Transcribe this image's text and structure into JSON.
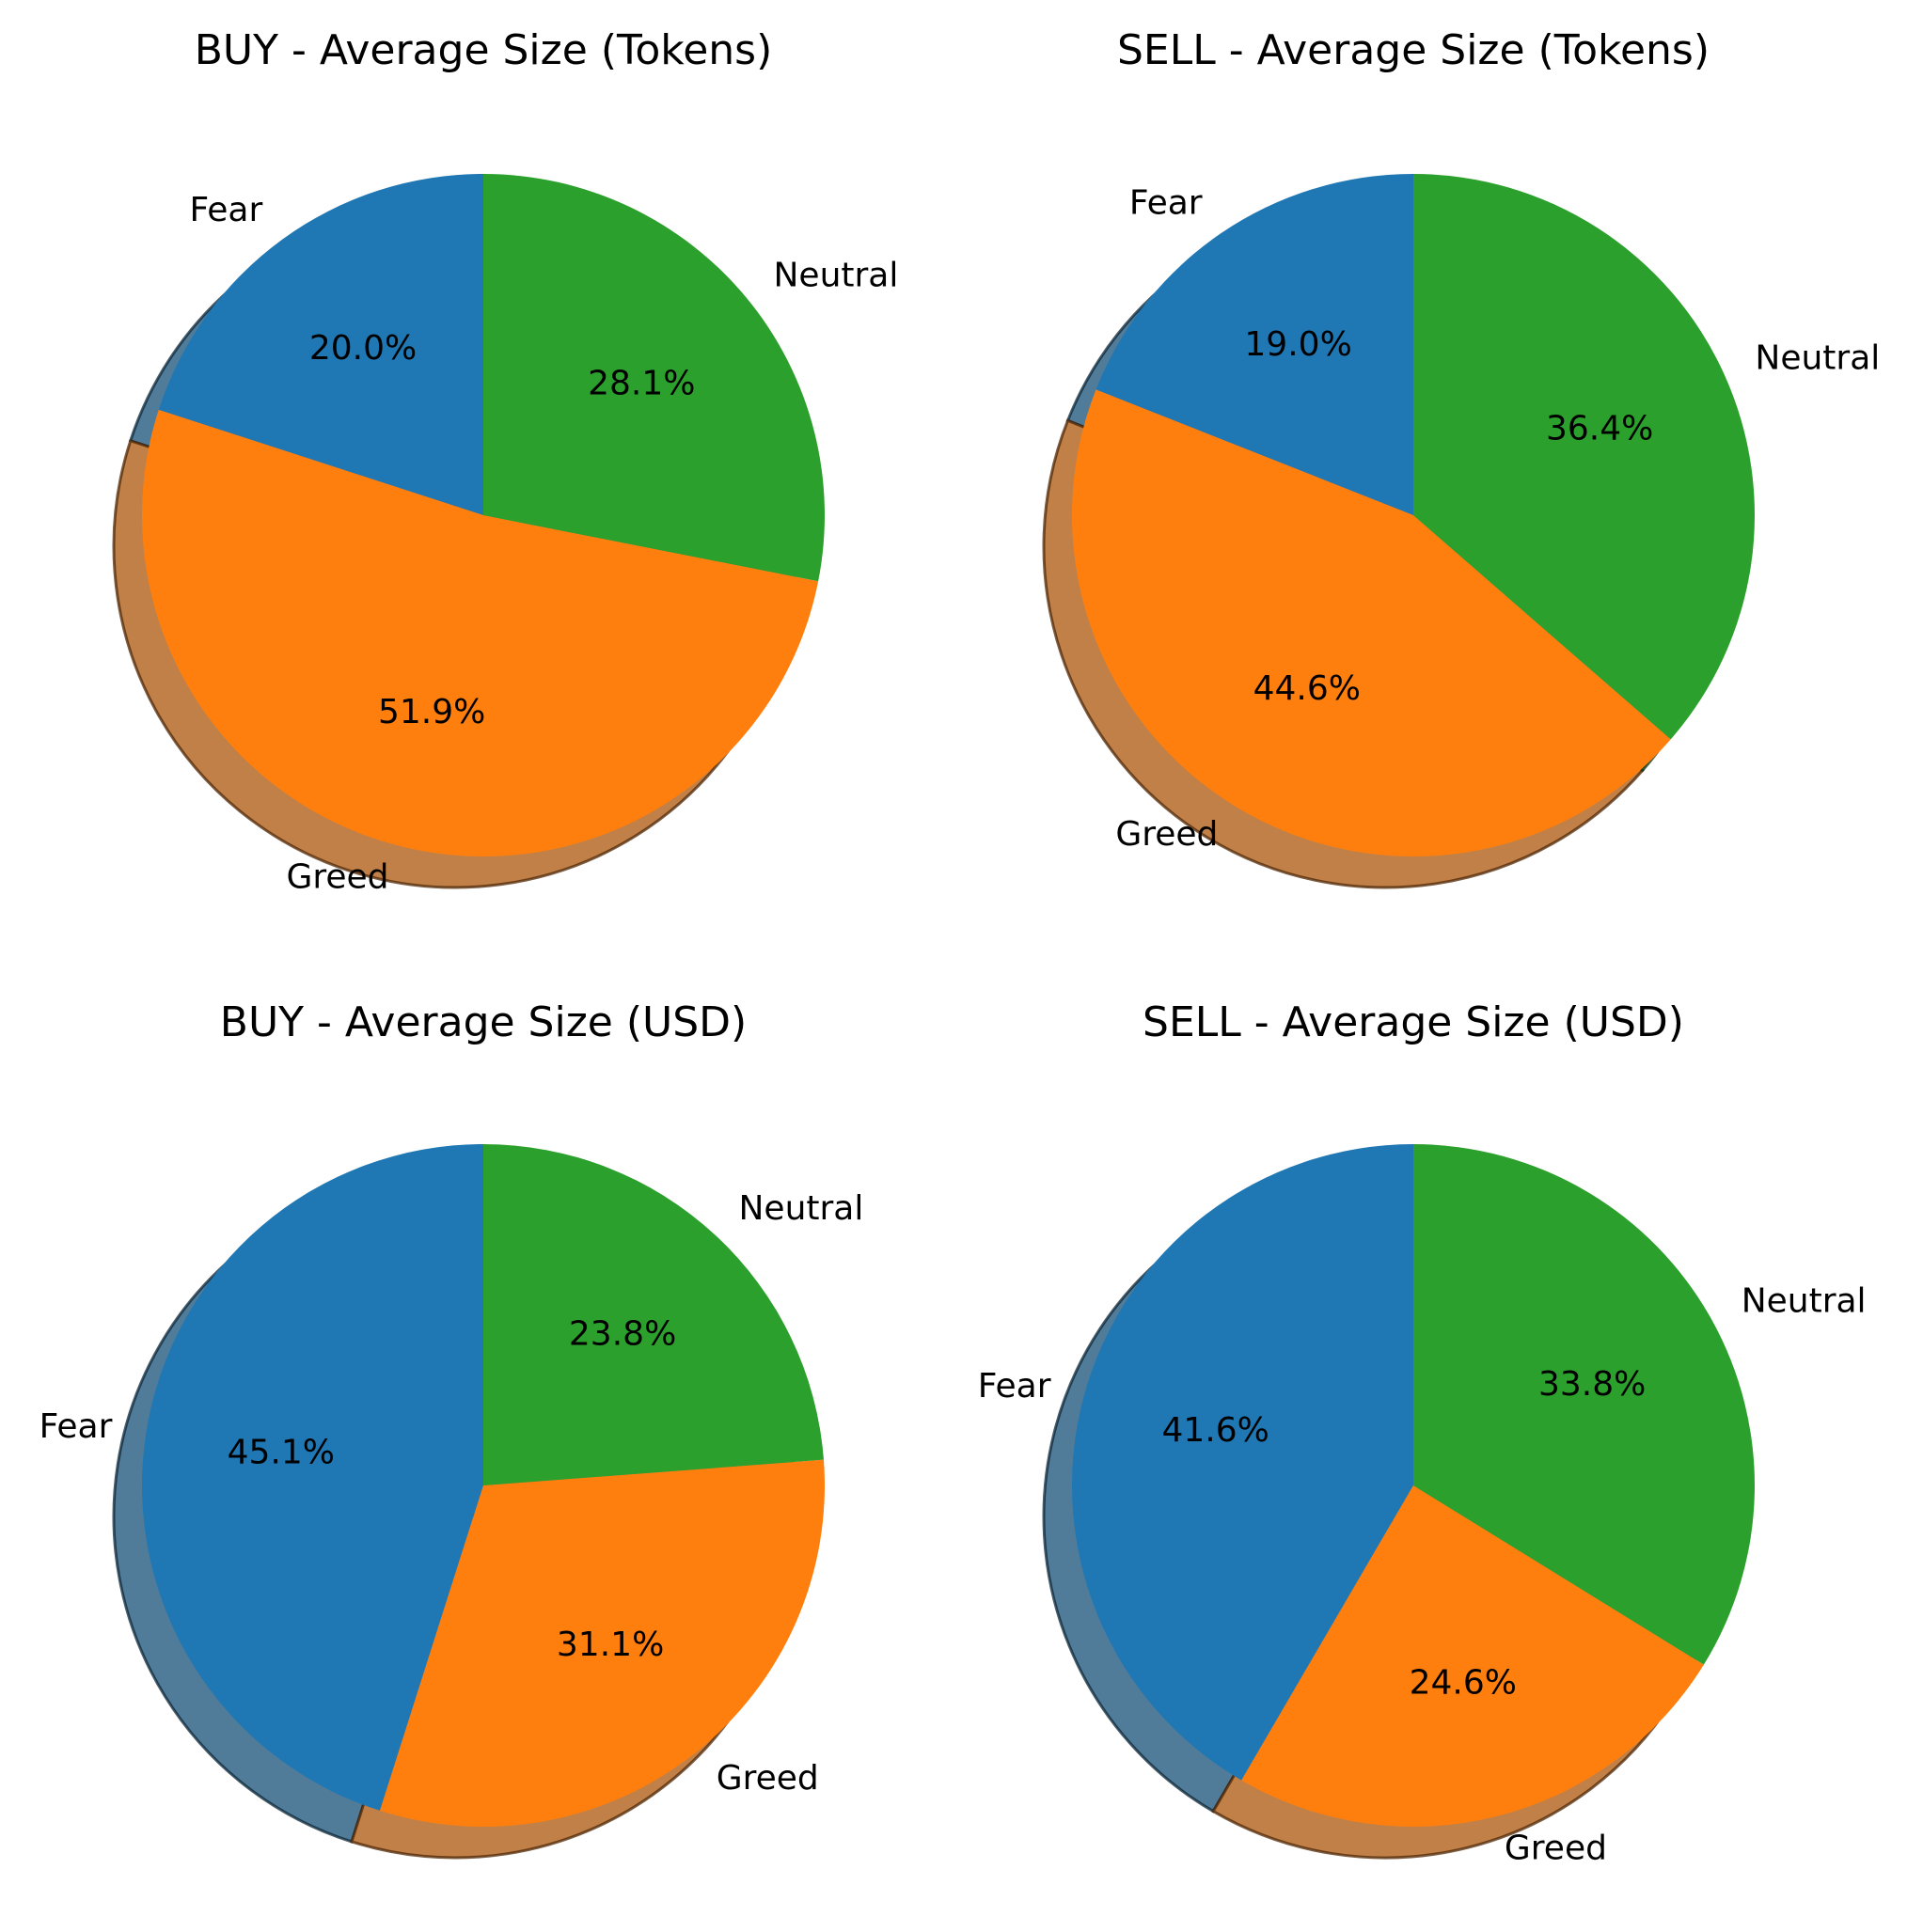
{
  "chart_data": [
    {
      "type": "pie",
      "title": "BUY - Average Size (Tokens)",
      "labels": [
        "Fear",
        "Greed",
        "Neutral"
      ],
      "values": [
        20.0,
        51.9,
        28.1
      ],
      "value_labels": [
        "20.0%",
        "51.9%",
        "28.1%"
      ],
      "colors": [
        "#1f77b4",
        "#ff7f0e",
        "#2ca02c"
      ],
      "start_angle_deg": 90,
      "direction": "counterclockwise",
      "shadow": true
    },
    {
      "type": "pie",
      "title": "SELL - Average Size (Tokens)",
      "labels": [
        "Fear",
        "Greed",
        "Neutral"
      ],
      "values": [
        19.0,
        44.6,
        36.4
      ],
      "value_labels": [
        "19.0%",
        "44.6%",
        "36.4%"
      ],
      "colors": [
        "#1f77b4",
        "#ff7f0e",
        "#2ca02c"
      ],
      "start_angle_deg": 90,
      "direction": "counterclockwise",
      "shadow": true
    },
    {
      "type": "pie",
      "title": "BUY - Average Size (USD)",
      "labels": [
        "Fear",
        "Greed",
        "Neutral"
      ],
      "values": [
        45.1,
        31.1,
        23.8
      ],
      "value_labels": [
        "45.1%",
        "31.1%",
        "23.8%"
      ],
      "colors": [
        "#1f77b4",
        "#ff7f0e",
        "#2ca02c"
      ],
      "start_angle_deg": 90,
      "direction": "counterclockwise",
      "shadow": true
    },
    {
      "type": "pie",
      "title": "SELL - Average Size (USD)",
      "labels": [
        "Fear",
        "Greed",
        "Neutral"
      ],
      "values": [
        41.6,
        24.6,
        33.8
      ],
      "value_labels": [
        "41.6%",
        "24.6%",
        "33.8%"
      ],
      "colors": [
        "#1f77b4",
        "#ff7f0e",
        "#2ca02c"
      ],
      "start_angle_deg": 90,
      "direction": "counterclockwise",
      "shadow": true
    }
  ]
}
